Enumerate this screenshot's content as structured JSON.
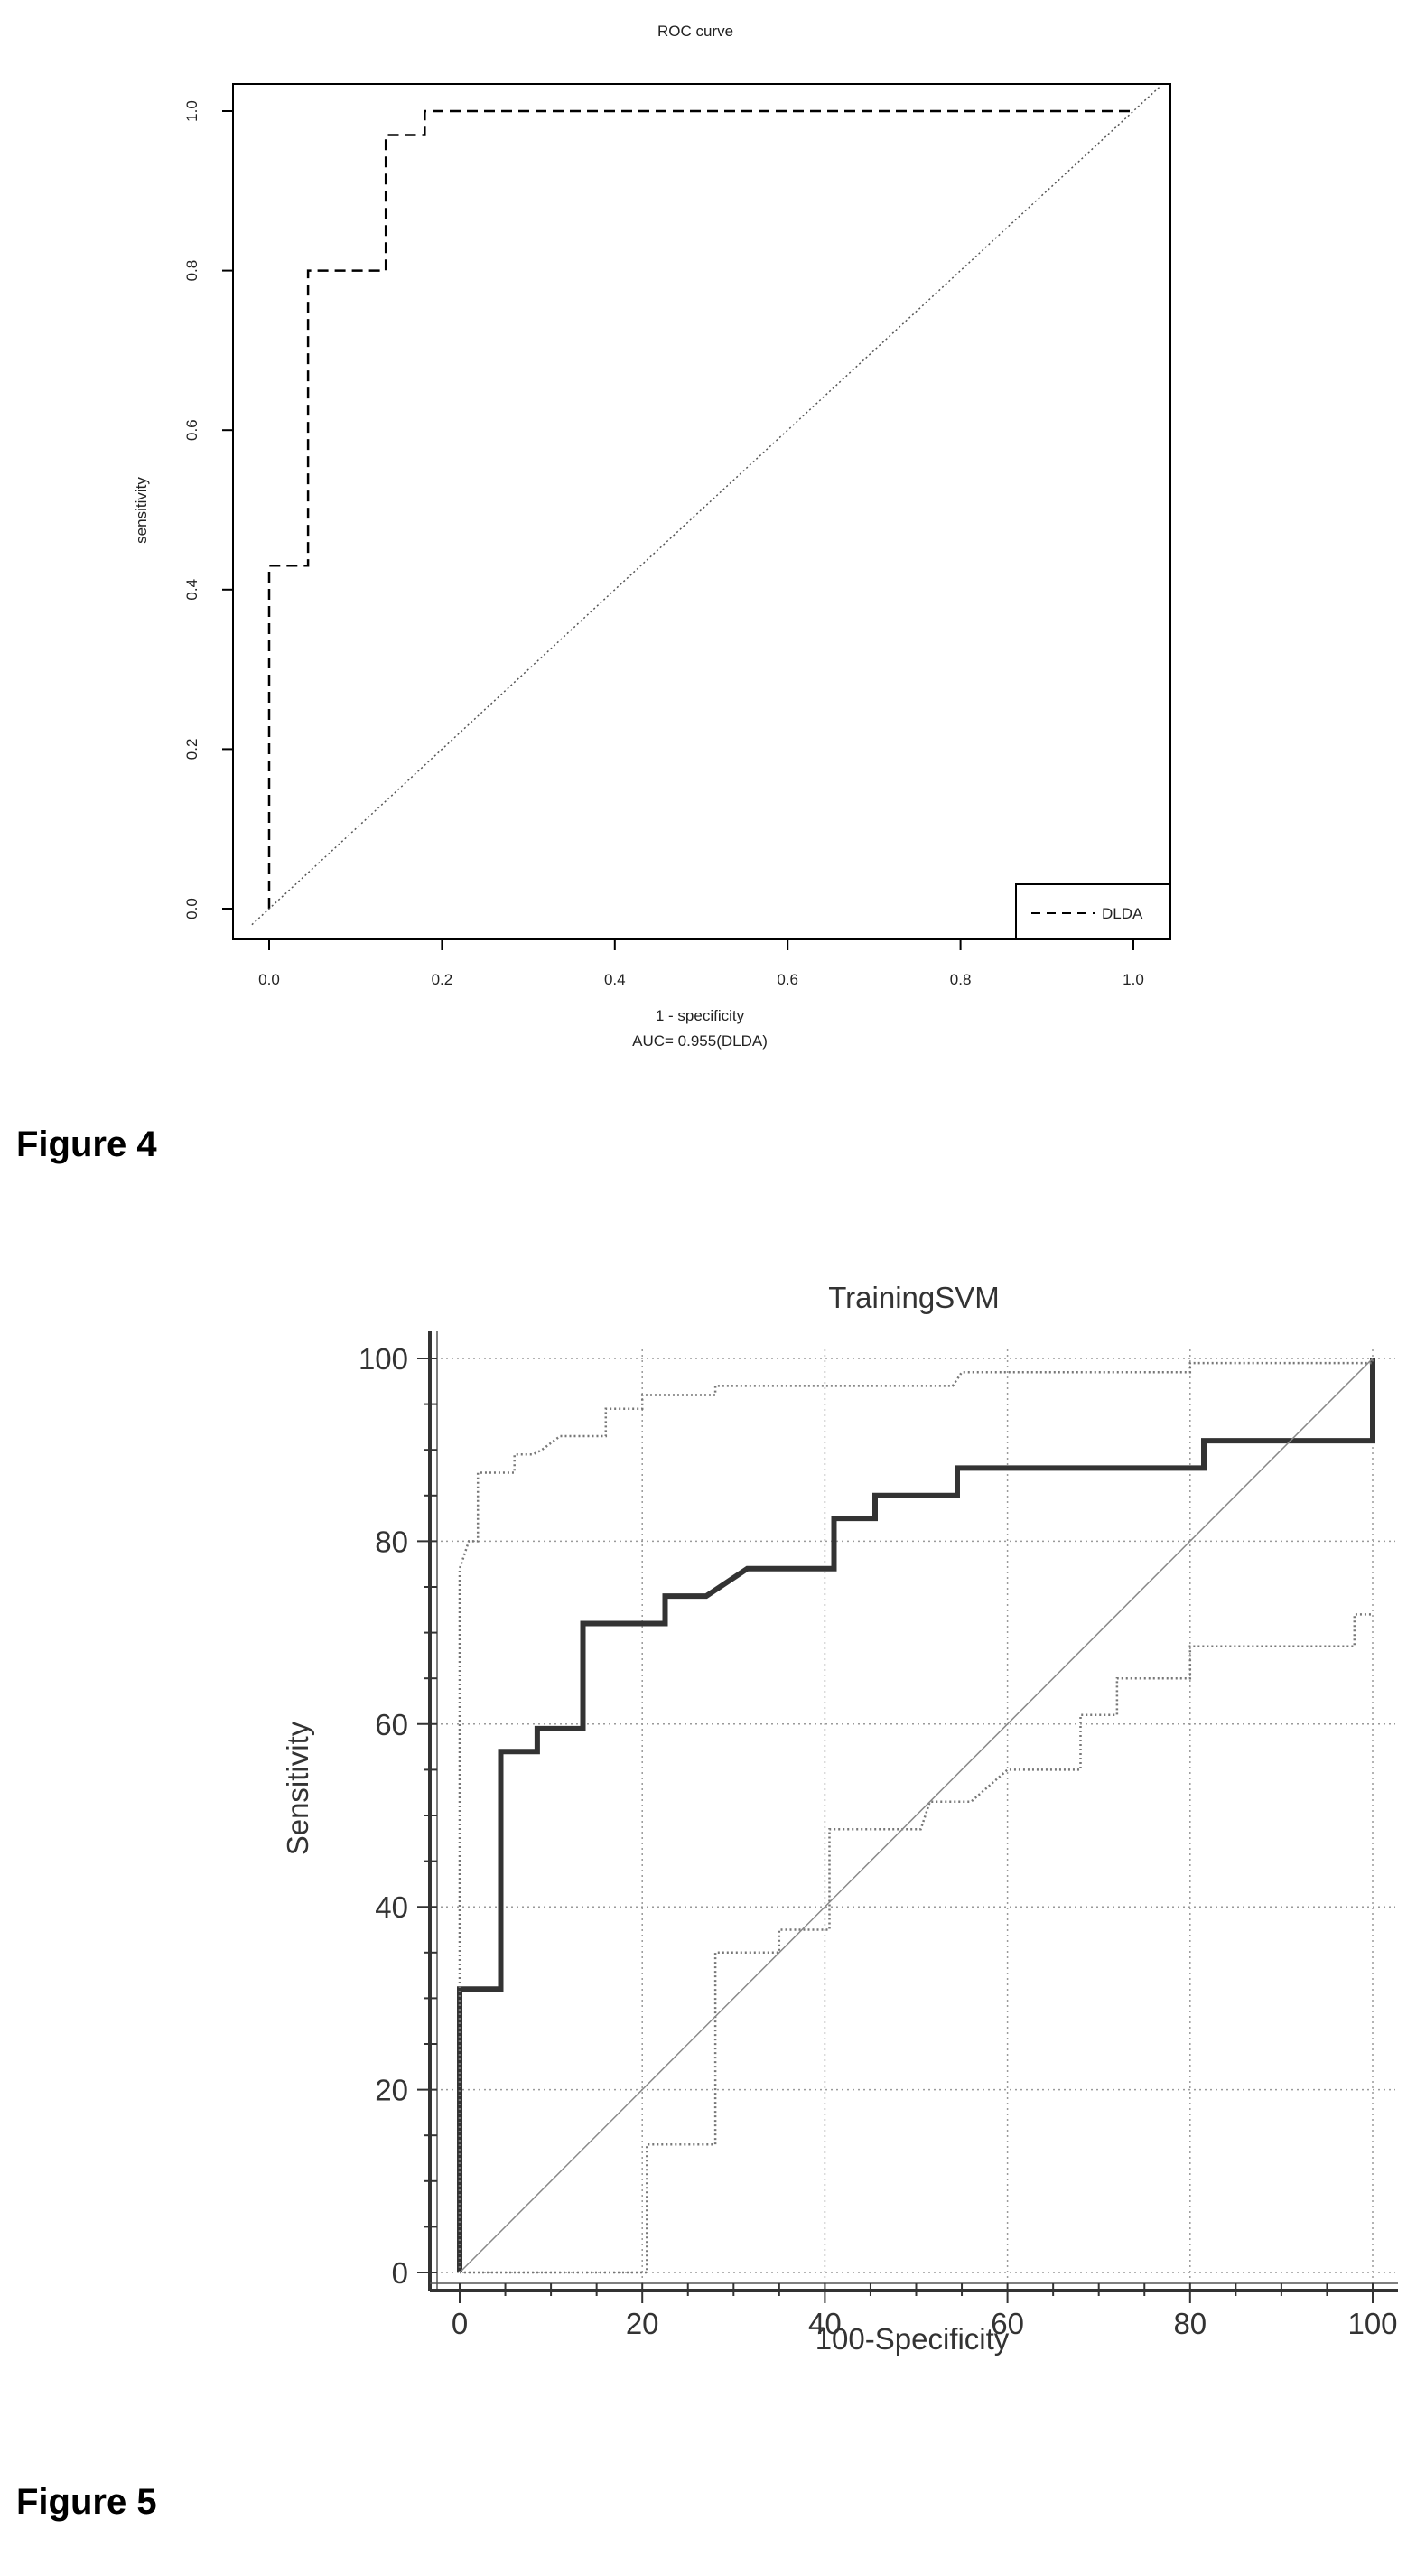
{
  "figure4": {
    "caption": "Figure 4"
  },
  "figure5": {
    "caption": "Figure 5"
  },
  "chart_data": [
    {
      "type": "line",
      "title": "ROC curve",
      "xlabel": "1 - specificity",
      "ylabel": "sensitivity",
      "annotation": "AUC= 0.955(DLDA)",
      "xlim": [
        0,
        1
      ],
      "ylim": [
        0,
        1
      ],
      "x_ticks": [
        "0.0",
        "0.2",
        "0.4",
        "0.6",
        "0.8",
        "1.0"
      ],
      "y_ticks": [
        "0.0",
        "0.2",
        "0.4",
        "0.6",
        "0.8",
        "1.0"
      ],
      "grid": false,
      "legend": {
        "position": "bottom-right",
        "entries": [
          "DLDA"
        ]
      },
      "series": [
        {
          "name": "DLDA",
          "style": "dashed",
          "color": "#000000",
          "points": [
            [
              0,
              0
            ],
            [
              0,
              0.43
            ],
            [
              0.045,
              0.43
            ],
            [
              0.045,
              0.8
            ],
            [
              0.135,
              0.8
            ],
            [
              0.135,
              0.97
            ],
            [
              0.18,
              0.97
            ],
            [
              0.18,
              1.0
            ],
            [
              1.0,
              1.0
            ]
          ]
        },
        {
          "style": "dotted-diagonal",
          "color": "#555555",
          "points": [
            [
              -0.02,
              -0.02
            ],
            [
              1.03,
              1.03
            ]
          ]
        }
      ]
    },
    {
      "type": "line",
      "title": "TrainingSVM",
      "xlabel": "100-Specificity",
      "ylabel": "Sensitivity",
      "xlim": [
        0,
        100
      ],
      "ylim": [
        0,
        100
      ],
      "x_ticks": [
        "0",
        "20",
        "40",
        "60",
        "80",
        "100"
      ],
      "y_ticks": [
        "0",
        "20",
        "40",
        "60",
        "80",
        "100"
      ],
      "grid": true,
      "legend": null,
      "series": [
        {
          "style": "thick-solid",
          "color": "#333333",
          "points": [
            [
              0,
              0
            ],
            [
              0,
              31
            ],
            [
              4.5,
              31
            ],
            [
              4.5,
              57
            ],
            [
              8.5,
              57
            ],
            [
              8.5,
              59.5
            ],
            [
              13.5,
              59.5
            ],
            [
              13.5,
              71
            ],
            [
              22.5,
              71
            ],
            [
              22.5,
              74
            ],
            [
              27,
              74
            ],
            [
              31.5,
              77
            ],
            [
              41,
              77
            ],
            [
              41,
              82.5
            ],
            [
              45.5,
              82.5
            ],
            [
              45.5,
              85
            ],
            [
              54.5,
              85
            ],
            [
              54.5,
              88
            ],
            [
              81.5,
              88
            ],
            [
              81.5,
              91
            ],
            [
              100,
              91
            ],
            [
              100,
              100
            ]
          ]
        },
        {
          "style": "dotted",
          "color": "#777777",
          "points": [
            [
              0,
              0
            ],
            [
              0,
              77
            ],
            [
              1,
              80
            ],
            [
              2,
              80
            ],
            [
              2,
              87.5
            ],
            [
              6,
              87.5
            ],
            [
              6,
              89.5
            ],
            [
              8,
              89.5
            ],
            [
              9,
              90
            ],
            [
              11,
              91.5
            ],
            [
              16,
              91.5
            ],
            [
              16,
              94.5
            ],
            [
              20,
              94.5
            ],
            [
              20,
              96
            ],
            [
              28,
              96
            ],
            [
              28,
              97
            ],
            [
              54,
              97
            ],
            [
              55,
              98.5
            ],
            [
              80,
              98.5
            ],
            [
              80,
              99.5
            ],
            [
              100,
              99.5
            ],
            [
              100,
              100
            ]
          ]
        },
        {
          "style": "dotted",
          "color": "#777777",
          "points": [
            [
              0,
              0
            ],
            [
              20.5,
              0
            ],
            [
              20.5,
              14
            ],
            [
              28,
              14
            ],
            [
              28,
              35
            ],
            [
              35,
              35
            ],
            [
              35,
              37.5
            ],
            [
              40.5,
              37.5
            ],
            [
              40.5,
              48.5
            ],
            [
              50.5,
              48.5
            ],
            [
              51.5,
              51.5
            ],
            [
              56,
              51.5
            ],
            [
              60,
              55
            ],
            [
              68,
              55
            ],
            [
              68,
              61
            ],
            [
              72,
              61
            ],
            [
              72,
              65
            ],
            [
              80,
              65
            ],
            [
              80,
              68.5
            ],
            [
              98,
              68.5
            ],
            [
              98,
              72
            ],
            [
              100,
              72
            ]
          ]
        },
        {
          "style": "thin-diagonal",
          "color": "#888888",
          "points": [
            [
              0,
              0
            ],
            [
              100,
              100
            ]
          ]
        }
      ]
    }
  ]
}
